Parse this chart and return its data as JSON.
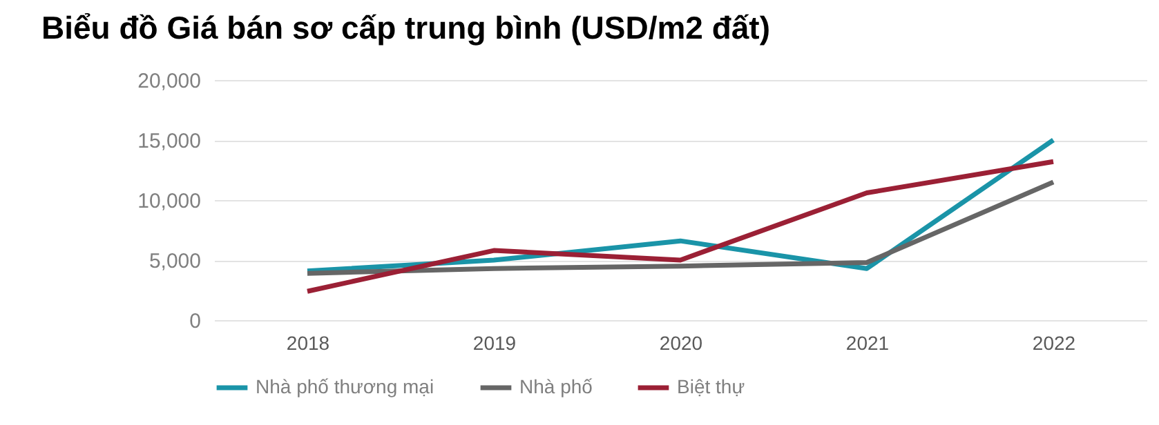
{
  "chart_data": {
    "type": "line",
    "title": "Biểu đồ Giá bán sơ cấp trung bình (USD/m2 đất)",
    "categories": [
      "2018",
      "2019",
      "2020",
      "2021",
      "2022"
    ],
    "series": [
      {
        "name": "Nhà phố thương mại",
        "color": "#1a94a8",
        "values": [
          4100,
          5000,
          6600,
          4300,
          15000
        ]
      },
      {
        "name": "Nhà phố",
        "color": "#666666",
        "values": [
          3900,
          4300,
          4500,
          4800,
          11500
        ]
      },
      {
        "name": "Biệt thự",
        "color": "#9b2035",
        "values": [
          2400,
          5800,
          5000,
          10600,
          13200
        ]
      }
    ],
    "ylim": [
      0,
      20000
    ],
    "yticks": [
      0,
      {
        "value": 5000,
        "label": "5,000"
      },
      {
        "value": 10000,
        "label": "10,000"
      },
      {
        "value": 15000,
        "label": "15,000"
      },
      {
        "value": 20000,
        "label": "20,000"
      }
    ],
    "grid": "y",
    "legend": "bottom"
  }
}
